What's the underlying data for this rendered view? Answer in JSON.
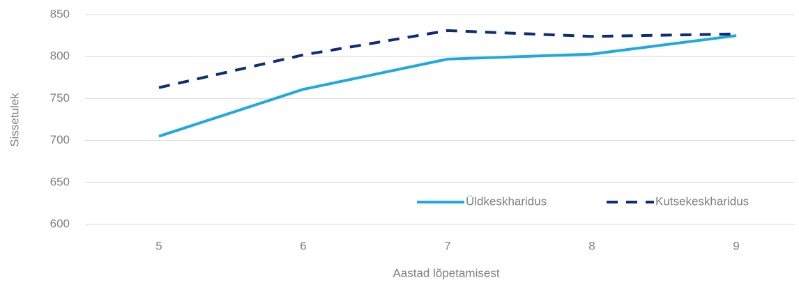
{
  "chart_data": {
    "type": "line",
    "x_label": "Aastad lõpetamisest",
    "y_label": "Sissetulek",
    "categories": [
      "5",
      "6",
      "7",
      "8",
      "9"
    ],
    "series": [
      {
        "name": "Üldkeskharidus",
        "color": "#1fa9e1",
        "dash": "solid",
        "values": [
          705,
          761,
          797,
          803,
          825
        ]
      },
      {
        "name": "Kutsekeskharidus",
        "color": "#0d2d78",
        "dash": "dashed",
        "values": [
          763,
          802,
          831,
          824,
          827
        ]
      }
    ],
    "ylim": [
      600,
      850
    ],
    "yticks": [
      600,
      650,
      700,
      750,
      800,
      850
    ],
    "grid": true,
    "legend": "bottom-right"
  }
}
